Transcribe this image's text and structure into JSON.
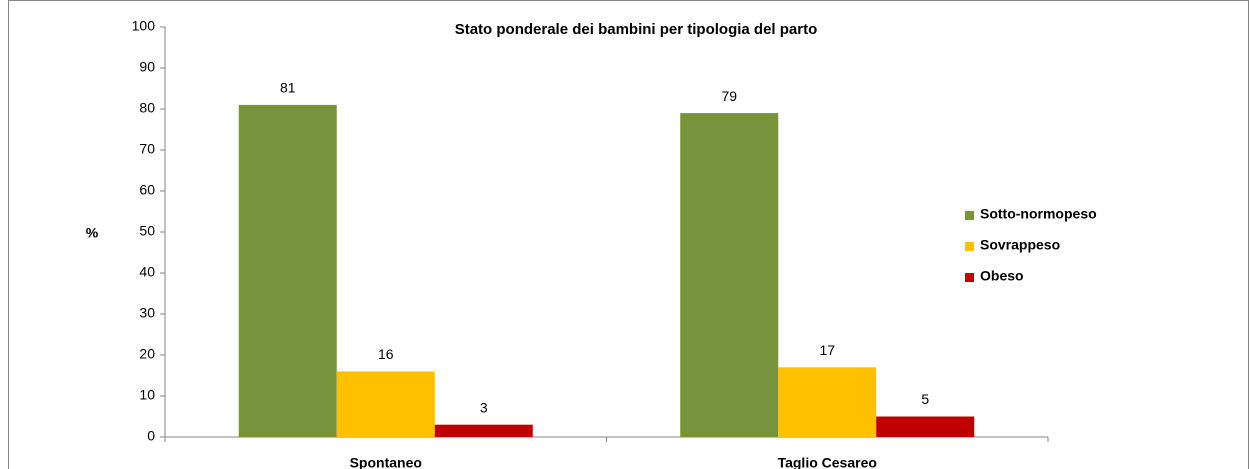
{
  "chart_data": {
    "type": "bar",
    "title": "Stato ponderale dei bambini  per tipologia del parto",
    "y_label": "%",
    "categories": [
      "Spontaneo",
      "Taglio Cesareo"
    ],
    "series": [
      {
        "name": "Sotto-normopeso",
        "color": "#77933c",
        "values": [
          81,
          79
        ]
      },
      {
        "name": "Sovrappeso",
        "color": "#ffc000",
        "values": [
          16,
          17
        ]
      },
      {
        "name": "Obeso",
        "color": "#c00000",
        "values": [
          3,
          5
        ]
      }
    ],
    "ylim": [
      0,
      100
    ],
    "yticks": [
      0,
      10,
      20,
      30,
      40,
      50,
      60,
      70,
      80,
      90,
      100
    ],
    "legend": "right",
    "grid": false
  }
}
